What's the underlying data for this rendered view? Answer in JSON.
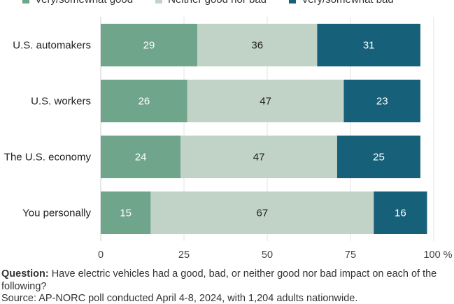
{
  "legend": {
    "items": [
      {
        "label": "Very/somewhat good",
        "color": "#6fa58a"
      },
      {
        "label": "Neither good nor bad",
        "color": "#c1d2c7"
      },
      {
        "label": "Very/somewhat bad",
        "color": "#17607a"
      }
    ]
  },
  "footnote": {
    "question_label": "Question:",
    "question_text": "Have electric vehicles had a good, bad, or neither good nor bad impact on each of the following?",
    "source_text": "Source: AP-NORC poll conducted April 4-8, 2024, with 1,204 adults nationwide."
  },
  "chart_data": {
    "type": "bar",
    "orientation": "horizontal",
    "stacked": true,
    "categories": [
      "U.S. automakers",
      "U.S. workers",
      "The U.S. economy",
      "You personally"
    ],
    "series": [
      {
        "name": "Very/somewhat good",
        "values": [
          29,
          26,
          24,
          15
        ],
        "color": "#6fa58a",
        "label_color": "#ffffff"
      },
      {
        "name": "Neither good nor bad",
        "values": [
          36,
          47,
          47,
          67
        ],
        "color": "#c1d2c7",
        "label_color": "#222222"
      },
      {
        "name": "Very/somewhat bad",
        "values": [
          31,
          23,
          25,
          16
        ],
        "color": "#17607a",
        "label_color": "#ffffff"
      }
    ],
    "xlim": [
      0,
      100
    ],
    "xticks": [
      "0",
      "25",
      "50",
      "75",
      "100 %"
    ],
    "xtick_values": [
      0,
      25,
      50,
      75,
      100
    ],
    "grid": true,
    "legend_position": "top"
  }
}
